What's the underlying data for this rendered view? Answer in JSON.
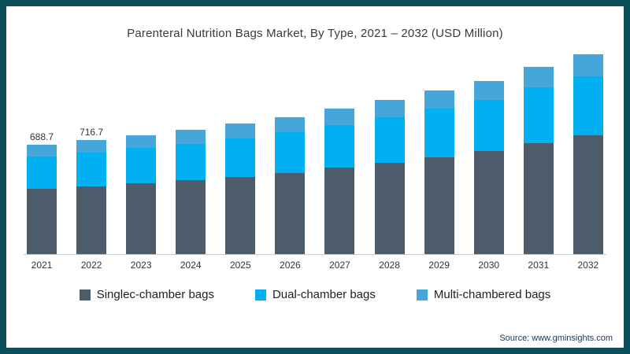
{
  "title": "Parenteral Nutrition Bags Market, By Type, 2021 – 2032 (USD Million)",
  "source": "Source: www.gminsights.com",
  "colors": {
    "frame_border": "#0d4e5c",
    "single_chamber": "#4d5c6a",
    "dual_chamber": "#00b0f0",
    "multi_chamber": "#45a7d9",
    "axis_line": "#c9c9c9"
  },
  "chart_data": {
    "type": "bar",
    "stacked": true,
    "title": "Parenteral Nutrition Bags Market, By Type, 2021 – 2032 (USD Million)",
    "xlabel": "",
    "ylabel": "USD Million",
    "grid": false,
    "legend_position": "bottom",
    "categories": [
      "2021",
      "2022",
      "2023",
      "2024",
      "2025",
      "2026",
      "2027",
      "2028",
      "2029",
      "2030",
      "2031",
      "2032"
    ],
    "series": [
      {
        "name": "Singlec-chamber bags",
        "color": "#4d5c6a",
        "values": [
          410.0,
          427.0,
          445,
          463,
          487,
          511,
          543,
          576,
          611,
          647,
          700,
          748
        ]
      },
      {
        "name": "Dual-chamber bags",
        "color": "#00b0f0",
        "values": [
          205.0,
          213.0,
          222,
          231,
          243,
          255,
          271,
          287,
          305,
          323,
          350,
          373
        ]
      },
      {
        "name": "Multi-chambered bags",
        "color": "#45a7d9",
        "values": [
          73.7,
          76.7,
          83,
          86,
          90,
          94,
          101,
          107,
          114,
          120,
          130,
          139
        ]
      }
    ],
    "totals": [
      688.7,
      716.7,
      750,
      780,
      820,
      860,
      915,
      970,
      1030,
      1090,
      1180,
      1260
    ],
    "bar_labels": {
      "2021": "688.7",
      "2022": "716.7"
    }
  }
}
